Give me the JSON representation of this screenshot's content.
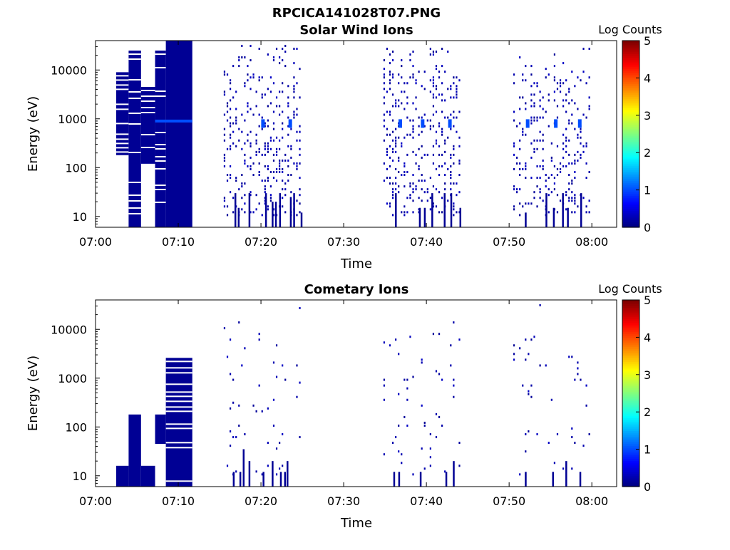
{
  "figure": {
    "title": "RPCICA141028T07.PNG"
  },
  "colors": {
    "axis": "#000000",
    "background": "#ffffff"
  },
  "chart_data": [
    {
      "type": "heatmap",
      "title": "Solar Wind Ions",
      "xlabel": "Time",
      "ylabel": "Energy (eV)",
      "yscale": "log",
      "xlim": [
        "07:00",
        "08:03"
      ],
      "ylim": [
        6,
        40000
      ],
      "x_ticks": [
        "07:00",
        "07:10",
        "07:20",
        "07:30",
        "07:40",
        "07:50",
        "08:00"
      ],
      "y_ticks": [
        "10",
        "100",
        "1000",
        "10000"
      ],
      "colorbar": {
        "label": "Log Counts",
        "range": [
          0,
          5
        ],
        "ticks": [
          "0",
          "1",
          "2",
          "3",
          "4",
          "5"
        ]
      },
      "dense_blocks": [
        {
          "t0": 2.5,
          "t1": 4.0,
          "e0": 180,
          "e1": 9000,
          "level": 0.3,
          "striped": true
        },
        {
          "t0": 4.0,
          "t1": 5.5,
          "e0": 6,
          "e1": 25000,
          "level": 0.3,
          "striped": true
        },
        {
          "t0": 5.5,
          "t1": 7.2,
          "e0": 120,
          "e1": 4500,
          "level": 0.3,
          "striped": true
        },
        {
          "t0": 7.2,
          "t1": 8.5,
          "e0": 6,
          "e1": 25000,
          "level": 0.3,
          "striped": true
        },
        {
          "t0": 8.5,
          "t1": 11.7,
          "e0": 6,
          "e1": 40000,
          "level": 0.3,
          "striped": false
        }
      ],
      "highlight_bands": [
        {
          "t0": 7.2,
          "t1": 11.7,
          "e": 900,
          "level": 0.9
        }
      ],
      "sparse_intervals": [
        {
          "t0": 15.5,
          "t1": 24.8,
          "density": 0.22,
          "seed": 11
        },
        {
          "t0": 34.8,
          "t1": 44.0,
          "density": 0.2,
          "seed": 23
        },
        {
          "t0": 50.5,
          "t1": 59.8,
          "density": 0.16,
          "seed": 37
        }
      ],
      "bright_spots": [
        {
          "t": 20.2,
          "e": 800
        },
        {
          "t": 23.5,
          "e": 800
        },
        {
          "t": 36.8,
          "e": 800
        },
        {
          "t": 39.5,
          "e": 800
        },
        {
          "t": 42.8,
          "e": 800
        },
        {
          "t": 52.2,
          "e": 800
        },
        {
          "t": 55.6,
          "e": 800
        },
        {
          "t": 58.5,
          "e": 800
        }
      ],
      "low_energy_columns": [
        {
          "t": 16.8,
          "e1": 30
        },
        {
          "t": 17.2,
          "e1": 15
        },
        {
          "t": 18.5,
          "e1": 30
        },
        {
          "t": 20.5,
          "e1": 30
        },
        {
          "t": 21.3,
          "e1": 20
        },
        {
          "t": 21.7,
          "e1": 20
        },
        {
          "t": 22.2,
          "e1": 30
        },
        {
          "t": 23.5,
          "e1": 25
        },
        {
          "t": 23.9,
          "e1": 30
        },
        {
          "t": 24.8,
          "e1": 12
        },
        {
          "t": 36.2,
          "e1": 30
        },
        {
          "t": 39.1,
          "e1": 15
        },
        {
          "t": 39.7,
          "e1": 15
        },
        {
          "t": 40.6,
          "e1": 30
        },
        {
          "t": 42.1,
          "e1": 30
        },
        {
          "t": 42.9,
          "e1": 30
        },
        {
          "t": 44.0,
          "e1": 15
        },
        {
          "t": 51.9,
          "e1": 12
        },
        {
          "t": 54.4,
          "e1": 30
        },
        {
          "t": 55.3,
          "e1": 15
        },
        {
          "t": 56.4,
          "e1": 30
        },
        {
          "t": 57.0,
          "e1": 15
        },
        {
          "t": 58.6,
          "e1": 30
        }
      ]
    },
    {
      "type": "heatmap",
      "title": "Cometary Ions",
      "xlabel": "Time",
      "ylabel": "Energy (eV)",
      "yscale": "log",
      "xlim": [
        "07:00",
        "08:03"
      ],
      "ylim": [
        6,
        40000
      ],
      "x_ticks": [
        "07:00",
        "07:10",
        "07:20",
        "07:30",
        "07:40",
        "07:50",
        "08:00"
      ],
      "y_ticks": [
        "10",
        "100",
        "1000",
        "10000"
      ],
      "colorbar": {
        "label": "Log Counts",
        "range": [
          0,
          5
        ],
        "ticks": [
          "0",
          "1",
          "2",
          "3",
          "4",
          "5"
        ]
      },
      "dense_blocks": [
        {
          "t0": 2.5,
          "t1": 4.0,
          "e0": 6,
          "e1": 16,
          "level": 0.3,
          "striped": false
        },
        {
          "t0": 4.0,
          "t1": 5.5,
          "e0": 6,
          "e1": 180,
          "level": 0.3,
          "striped": false
        },
        {
          "t0": 5.5,
          "t1": 7.2,
          "e0": 6,
          "e1": 16,
          "level": 0.3,
          "striped": false
        },
        {
          "t0": 7.2,
          "t1": 8.5,
          "e0": 45,
          "e1": 180,
          "level": 0.3,
          "striped": false
        },
        {
          "t0": 8.5,
          "t1": 11.7,
          "e0": 6,
          "e1": 2600,
          "level": 0.3,
          "striped": true
        }
      ],
      "highlight_bands": [],
      "sparse_intervals": [
        {
          "t0": 15.5,
          "t1": 24.8,
          "density": 0.035,
          "seed": 51
        },
        {
          "t0": 34.8,
          "t1": 44.0,
          "density": 0.025,
          "seed": 67
        },
        {
          "t0": 50.5,
          "t1": 59.8,
          "density": 0.025,
          "seed": 83
        }
      ],
      "bright_spots": [],
      "low_energy_columns": [
        {
          "t": 16.6,
          "e1": 12
        },
        {
          "t": 17.4,
          "e1": 12
        },
        {
          "t": 17.8,
          "e1": 35
        },
        {
          "t": 18.5,
          "e1": 20
        },
        {
          "t": 20.2,
          "e1": 12
        },
        {
          "t": 21.3,
          "e1": 20
        },
        {
          "t": 22.3,
          "e1": 12
        },
        {
          "t": 22.8,
          "e1": 12
        },
        {
          "t": 23.1,
          "e1": 20
        },
        {
          "t": 36.0,
          "e1": 12
        },
        {
          "t": 36.6,
          "e1": 12
        },
        {
          "t": 39.2,
          "e1": 12
        },
        {
          "t": 42.3,
          "e1": 12
        },
        {
          "t": 43.2,
          "e1": 20
        },
        {
          "t": 51.9,
          "e1": 12
        },
        {
          "t": 55.2,
          "e1": 12
        },
        {
          "t": 56.8,
          "e1": 20
        },
        {
          "t": 58.5,
          "e1": 12
        }
      ]
    }
  ]
}
